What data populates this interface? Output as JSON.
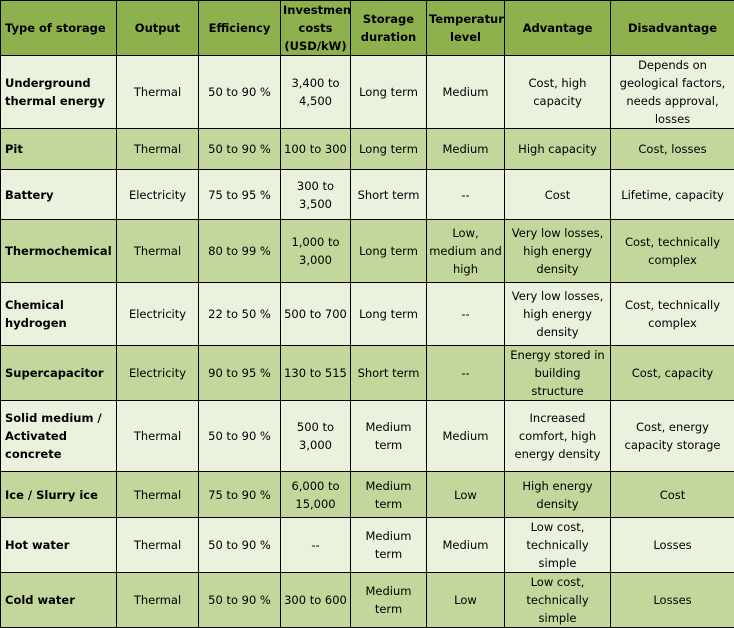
{
  "headers": [
    "Type of storage",
    "Output",
    "Efficiency",
    "Investment costs (USD/kW)",
    "Storage duration",
    "Temperature level",
    "Advantage",
    "Disadvantage"
  ],
  "rows": [
    {
      "type": "Underground thermal energy",
      "output": "Thermal",
      "efficiency": "50 to 90 %",
      "cost": "3,400 to 4,500",
      "duration": "Long term",
      "temperature": "Medium",
      "advantage": "Cost, high capacity",
      "disadvantage": "Depends on geological factors, needs approval, losses"
    },
    {
      "type": "Pit",
      "output": "Thermal",
      "efficiency": "50 to 90 %",
      "cost": "100 to 300",
      "duration": "Long term",
      "temperature": "Medium",
      "advantage": "High capacity",
      "disadvantage": "Cost, losses"
    },
    {
      "type": "Battery",
      "output": "Electricity",
      "efficiency": "75 to 95 %",
      "cost": "300 to 3,500",
      "duration": "Short term",
      "temperature": "--",
      "advantage": "Cost",
      "disadvantage": "Lifetime, capacity"
    },
    {
      "type": "Thermochemical",
      "output": "Thermal",
      "efficiency": "80 to 99 %",
      "cost": "1,000 to 3,000",
      "duration": "Long term",
      "temperature": "Low, medium and high",
      "advantage": "Very low losses, high energy density",
      "disadvantage": "Cost, technically complex"
    },
    {
      "type": "Chemical hydrogen",
      "output": "Electricity",
      "efficiency": "22 to 50 %",
      "cost": "500 to 700",
      "duration": "Long term",
      "temperature": "--",
      "advantage": "Very low losses, high energy density",
      "disadvantage": "Cost, technically complex"
    },
    {
      "type": "Supercapacitor",
      "output": "Electricity",
      "efficiency": "90 to 95 %",
      "cost": "130 to 515",
      "duration": "Short term",
      "temperature": "--",
      "advantage": "Energy stored in building structure",
      "disadvantage": "Cost, capacity"
    },
    {
      "type": "Solid medium / Activated concrete",
      "output": "Thermal",
      "efficiency": "50 to 90 %",
      "cost": "500 to 3,000",
      "duration": "Medium term",
      "temperature": "Medium",
      "advantage": "Increased comfort, high energy density",
      "disadvantage": "Cost, energy capacity storage"
    },
    {
      "type": "Ice / Slurry ice",
      "output": "Thermal",
      "efficiency": "75 to 90 %",
      "cost": "6,000 to 15,000",
      "duration": "Medium term",
      "temperature": "Low",
      "advantage": "High energy density",
      "disadvantage": "Cost"
    },
    {
      "type": "Hot water",
      "output": "Thermal",
      "efficiency": "50 to 90 %",
      "cost": "--",
      "duration": "Medium term",
      "temperature": "Medium",
      "advantage": "Low cost, technically simple",
      "disadvantage": "Losses"
    },
    {
      "type": "Cold water",
      "output": "Thermal",
      "efficiency": "50 to 90 %",
      "cost": "300 to 600",
      "duration": "Medium term",
      "temperature": "Low",
      "advantage": "Low cost, technically simple",
      "disadvantage": "Losses"
    }
  ]
}
